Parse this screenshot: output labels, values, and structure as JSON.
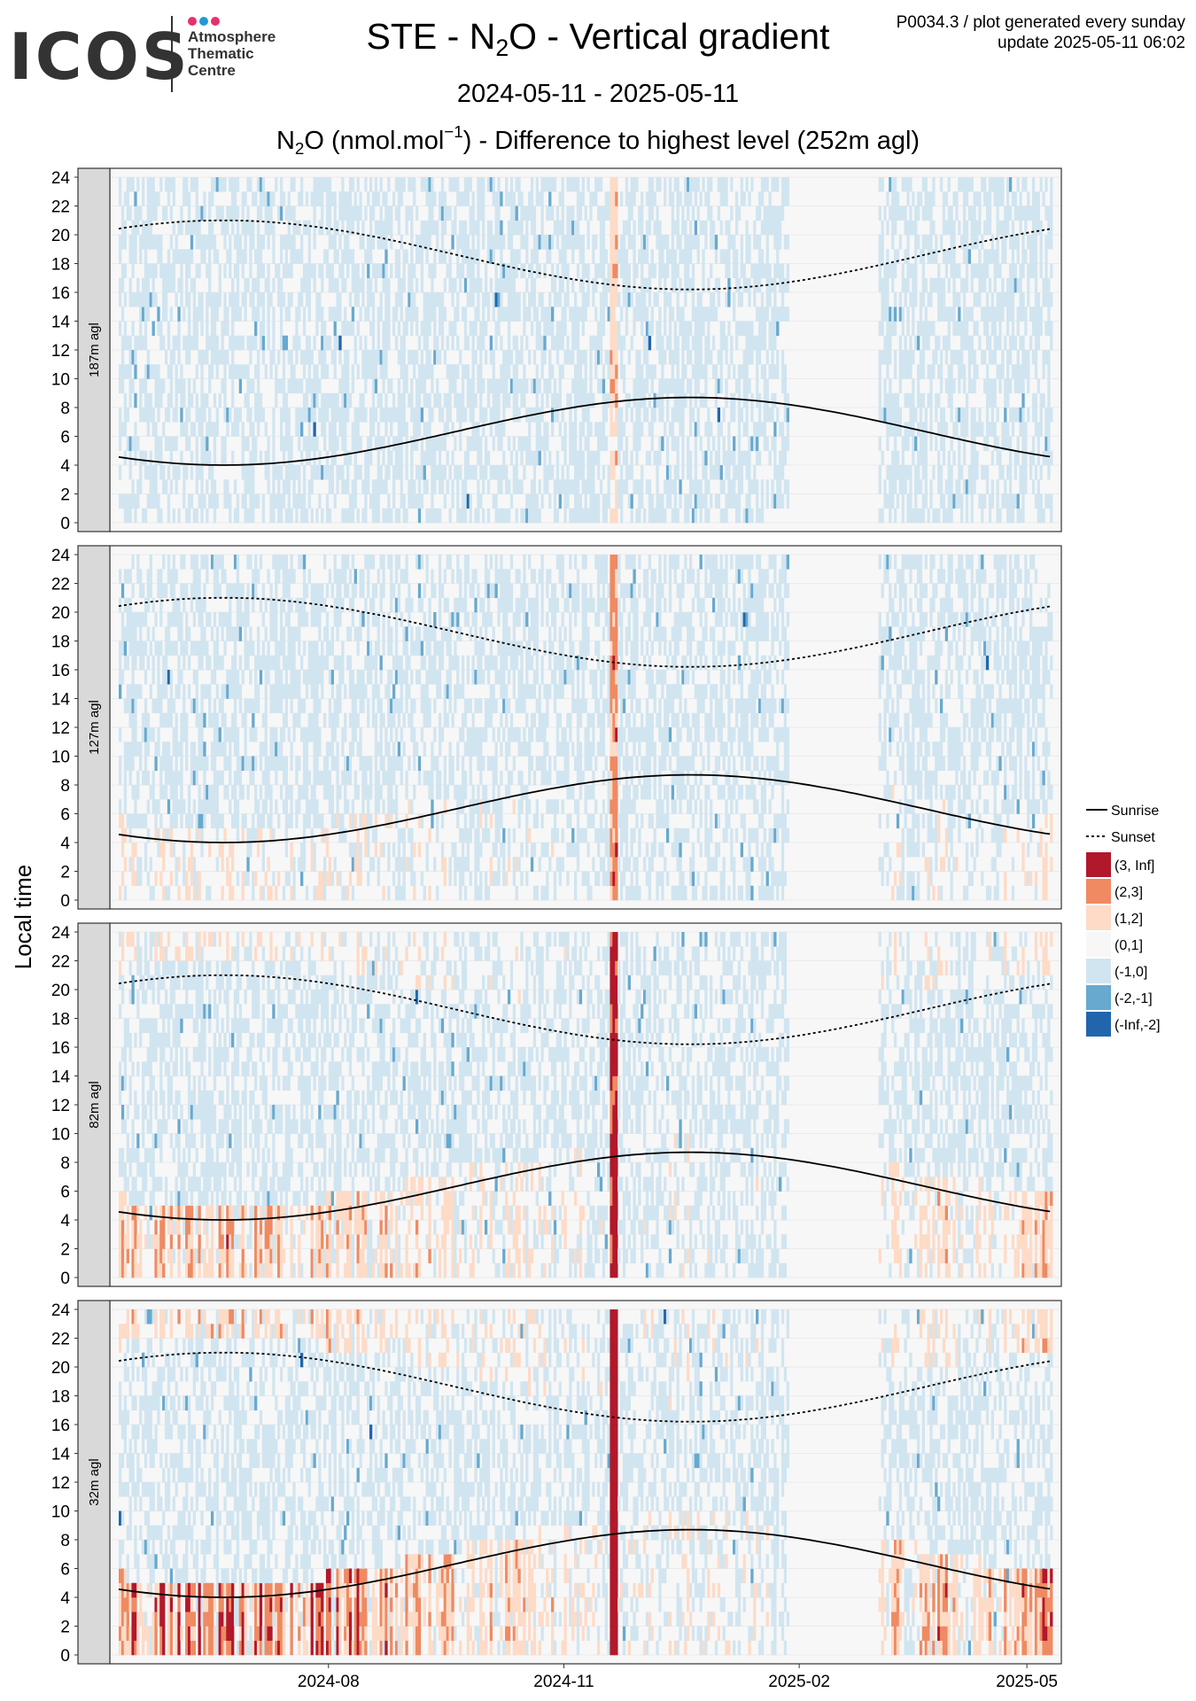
{
  "logo": {
    "word": "ICOS",
    "sub_lines": [
      "Atmosphere",
      "Thematic",
      "Centre"
    ],
    "dot_colors": [
      "#e6316f",
      "#1f9ad6",
      "#e6316f"
    ]
  },
  "header": {
    "title_prefix": "STE - N",
    "title_sub": "2",
    "title_suffix": "O - Vertical gradient",
    "date_range": "2024-05-11 - 2025-05-11",
    "subtitle_prefix": "N",
    "subtitle_sub": "2",
    "subtitle_mid": "O (nmol.mol",
    "subtitle_sup": "−1",
    "subtitle_suffix": ") - Difference to highest level (252m agl)",
    "meta_line1": "P0034.3 / plot generated every sunday",
    "meta_line2": "update  2025-05-11 06:02"
  },
  "chart_data": {
    "type": "heatmap",
    "ylabel": "Local time",
    "x_range": [
      "2024-05-11",
      "2025-05-11"
    ],
    "x_ticks": [
      "2024-08",
      "2024-11",
      "2025-02",
      "2025-05"
    ],
    "ylim": [
      0,
      24
    ],
    "y_ticks": [
      0,
      2,
      4,
      6,
      8,
      10,
      12,
      14,
      16,
      18,
      20,
      22,
      24
    ],
    "panels": [
      "187m agl",
      "127m agl",
      "82m agl",
      "32m agl"
    ],
    "legend": {
      "lines": [
        {
          "label": "Sunrise",
          "style": "solid"
        },
        {
          "label": "Sunset",
          "style": "dotted"
        }
      ],
      "bins": [
        {
          "label": "(3, Inf]",
          "color": "#b2182b"
        },
        {
          "label": "(2,3]",
          "color": "#ef8a62"
        },
        {
          "label": "(1,2]",
          "color": "#fddbc7"
        },
        {
          "label": "(0,1]",
          "color": "#f7f7f7"
        },
        {
          "label": "(-1,0]",
          "color": "#d1e5f0"
        },
        {
          "label": "(-2,-1]",
          "color": "#67a9cf"
        },
        {
          "label": "(-Inf,-2]",
          "color": "#2166ac"
        }
      ]
    },
    "sunrise_hours": {
      "2024-05-11": 4.5,
      "2024-06-21": 4.0,
      "2024-12-21": 8.7,
      "2025-05-11": 4.5
    },
    "sunset_hours": {
      "2024-05-11": 20.2,
      "2024-06-21": 21.0,
      "2024-12-21": 16.2,
      "2025-05-11": 20.2
    }
  }
}
